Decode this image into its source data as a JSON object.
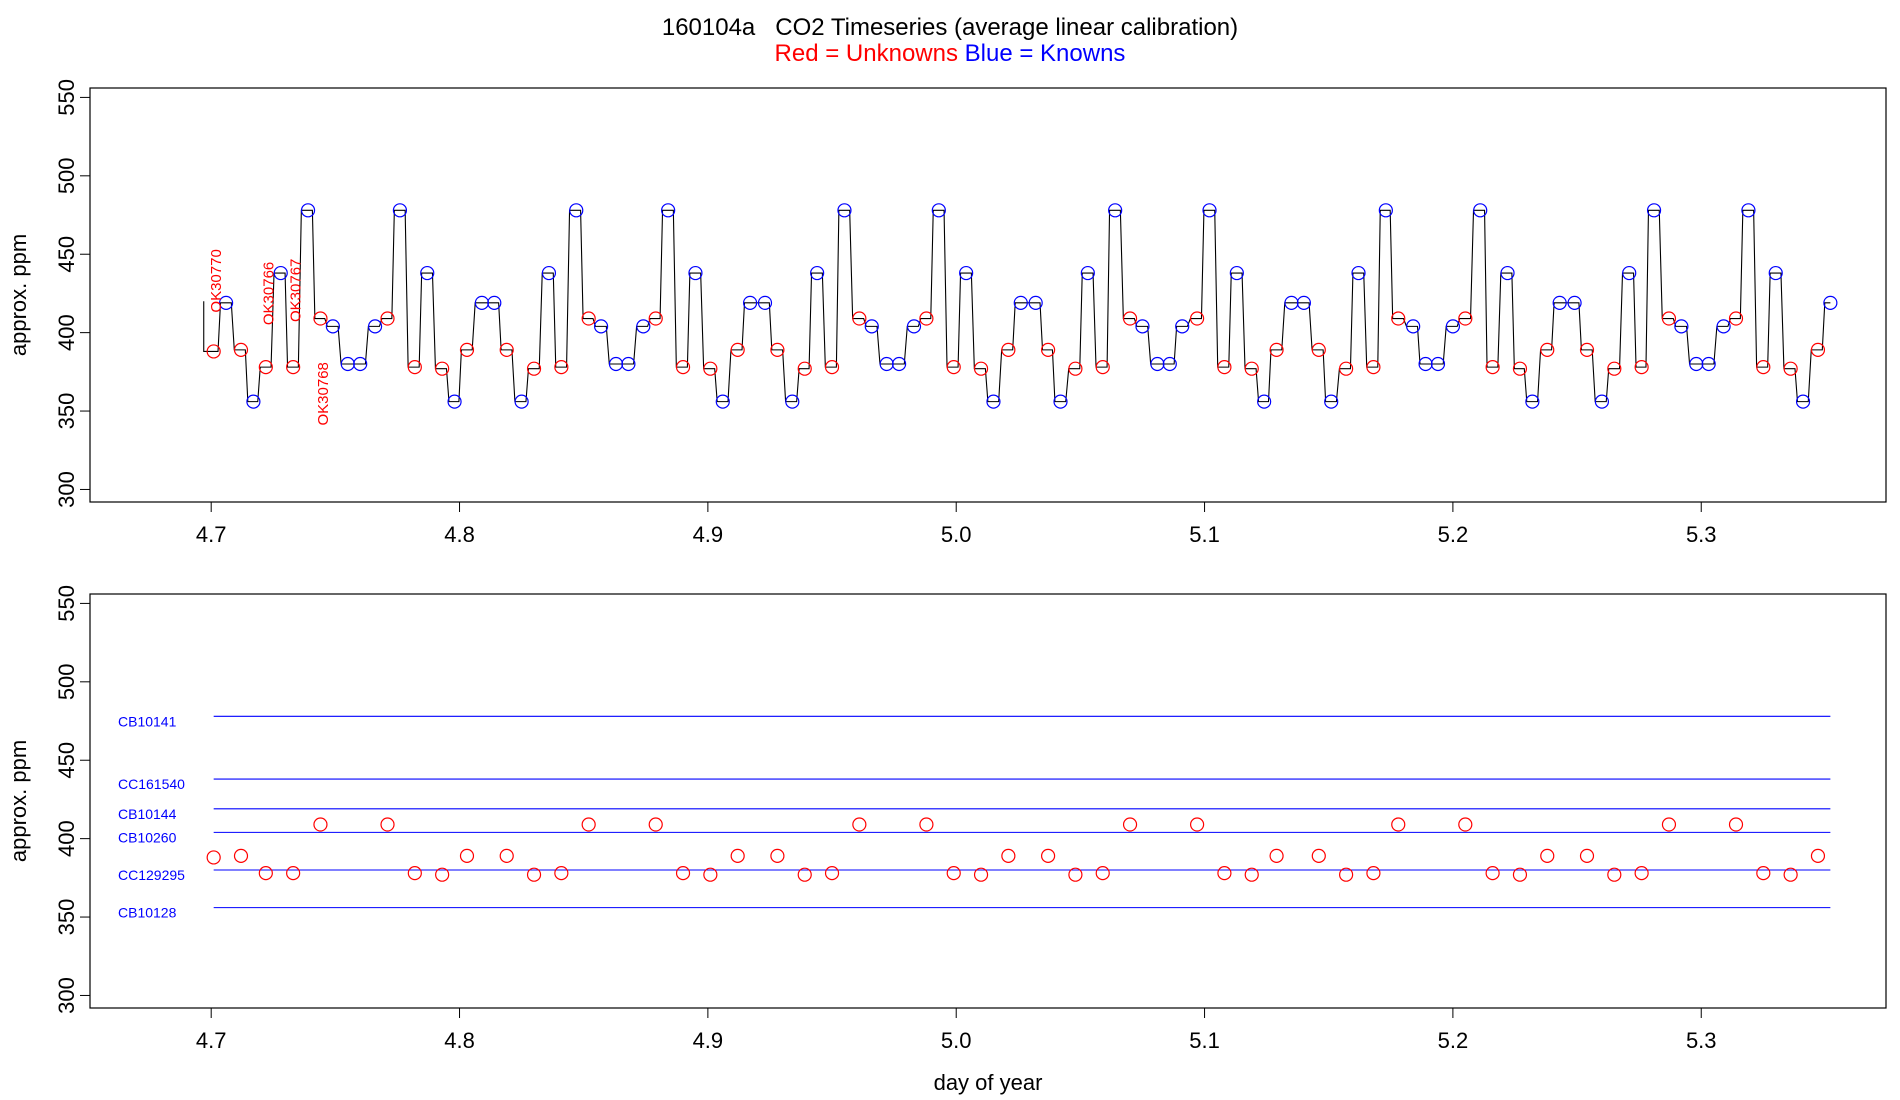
{
  "title": "160104a   CO2 Timeseries (average linear calibration)",
  "subtitle": {
    "red_text": "Red = Unknowns",
    "blue_text": "Blue = Knowns"
  },
  "colors": {
    "unknown": "#ff0000",
    "known": "#0000ff",
    "trace": "#000000",
    "frame": "#000000"
  },
  "chart_data": [
    {
      "type": "line",
      "panel": "top",
      "ylabel": "approx. ppm",
      "xlabel": "",
      "xlim": [
        4.6512,
        5.3744
      ],
      "ylim": [
        292,
        556
      ],
      "x_ticks": [
        "4.7",
        "4.8",
        "4.9",
        "5.0",
        "5.1",
        "5.2",
        "5.3"
      ],
      "y_ticks": [
        "300",
        "350",
        "400",
        "450",
        "500",
        "550"
      ],
      "trace_start_x": 4.697,
      "trace_end_x": 4.705,
      "trace_start_y": 420,
      "series": [
        {
          "role": "unknowns",
          "points": [
            [
              4.701,
              388
            ],
            [
              4.712,
              389
            ],
            [
              4.722,
              378
            ],
            [
              4.733,
              378
            ],
            [
              4.744,
              409
            ],
            [
              4.771,
              409
            ],
            [
              4.782,
              378
            ],
            [
              4.793,
              377
            ],
            [
              4.803,
              389
            ],
            [
              4.819,
              389
            ],
            [
              4.83,
              377
            ],
            [
              4.841,
              378
            ],
            [
              4.852,
              409
            ],
            [
              4.879,
              409
            ],
            [
              4.89,
              378
            ],
            [
              4.901,
              377
            ],
            [
              4.912,
              389
            ],
            [
              4.928,
              389
            ],
            [
              4.939,
              377
            ],
            [
              4.95,
              378
            ],
            [
              4.961,
              409
            ],
            [
              4.988,
              409
            ],
            [
              4.999,
              378
            ],
            [
              5.01,
              377
            ],
            [
              5.021,
              389
            ],
            [
              5.037,
              389
            ],
            [
              5.048,
              377
            ],
            [
              5.059,
              378
            ],
            [
              5.07,
              409
            ],
            [
              5.097,
              409
            ],
            [
              5.108,
              378
            ],
            [
              5.119,
              377
            ],
            [
              5.129,
              389
            ],
            [
              5.146,
              389
            ],
            [
              5.157,
              377
            ],
            [
              5.168,
              378
            ],
            [
              5.178,
              409
            ],
            [
              5.205,
              409
            ],
            [
              5.216,
              378
            ],
            [
              5.227,
              377
            ],
            [
              5.238,
              389
            ],
            [
              5.254,
              389
            ],
            [
              5.265,
              377
            ],
            [
              5.276,
              378
            ],
            [
              5.287,
              409
            ],
            [
              5.314,
              409
            ],
            [
              5.325,
              378
            ],
            [
              5.336,
              377
            ],
            [
              5.347,
              389
            ]
          ]
        },
        {
          "role": "knowns",
          "points": [
            [
              4.706,
              419
            ],
            [
              4.717,
              356
            ],
            [
              4.728,
              438
            ],
            [
              4.739,
              478
            ],
            [
              4.749,
              404
            ],
            [
              4.755,
              380
            ],
            [
              4.76,
              380
            ],
            [
              4.766,
              404
            ],
            [
              4.776,
              478
            ],
            [
              4.787,
              438
            ],
            [
              4.798,
              356
            ],
            [
              4.809,
              419
            ],
            [
              4.814,
              419
            ],
            [
              4.825,
              356
            ],
            [
              4.836,
              438
            ],
            [
              4.847,
              478
            ],
            [
              4.857,
              404
            ],
            [
              4.863,
              380
            ],
            [
              4.868,
              380
            ],
            [
              4.874,
              404
            ],
            [
              4.884,
              478
            ],
            [
              4.895,
              438
            ],
            [
              4.906,
              356
            ],
            [
              4.917,
              419
            ],
            [
              4.923,
              419
            ],
            [
              4.934,
              356
            ],
            [
              4.944,
              438
            ],
            [
              4.955,
              478
            ],
            [
              4.966,
              404
            ],
            [
              4.972,
              380
            ],
            [
              4.977,
              380
            ],
            [
              4.983,
              404
            ],
            [
              4.993,
              478
            ],
            [
              5.004,
              438
            ],
            [
              5.015,
              356
            ],
            [
              5.026,
              419
            ],
            [
              5.032,
              419
            ],
            [
              5.042,
              356
            ],
            [
              5.053,
              438
            ],
            [
              5.064,
              478
            ],
            [
              5.075,
              404
            ],
            [
              5.081,
              380
            ],
            [
              5.086,
              380
            ],
            [
              5.091,
              404
            ],
            [
              5.102,
              478
            ],
            [
              5.113,
              438
            ],
            [
              5.124,
              356
            ],
            [
              5.135,
              419
            ],
            [
              5.14,
              419
            ],
            [
              5.151,
              356
            ],
            [
              5.162,
              438
            ],
            [
              5.173,
              478
            ],
            [
              5.184,
              404
            ],
            [
              5.189,
              380
            ],
            [
              5.194,
              380
            ],
            [
              5.2,
              404
            ],
            [
              5.211,
              478
            ],
            [
              5.222,
              438
            ],
            [
              5.232,
              356
            ],
            [
              5.243,
              419
            ],
            [
              5.249,
              419
            ],
            [
              5.26,
              356
            ],
            [
              5.271,
              438
            ],
            [
              5.281,
              478
            ],
            [
              5.292,
              404
            ],
            [
              5.298,
              380
            ],
            [
              5.303,
              380
            ],
            [
              5.309,
              404
            ],
            [
              5.319,
              478
            ],
            [
              5.33,
              438
            ],
            [
              5.341,
              356
            ],
            [
              5.352,
              419
            ]
          ]
        }
      ],
      "annotations": [
        {
          "text": "OK30770",
          "x": 4.704,
          "y": 433
        },
        {
          "text": "OK30766",
          "x": 4.725,
          "y": 425
        },
        {
          "text": "OK30767",
          "x": 4.736,
          "y": 427
        },
        {
          "text": "OK30768",
          "x": 4.747,
          "y": 361
        }
      ]
    },
    {
      "type": "scatter",
      "panel": "bottom",
      "ylabel": "approx. ppm",
      "xlabel": "day of year",
      "xlim": [
        4.6512,
        5.3744
      ],
      "ylim": [
        292,
        556
      ],
      "x_ticks": [
        "4.7",
        "4.8",
        "4.9",
        "5.0",
        "5.1",
        "5.2",
        "5.3"
      ],
      "y_ticks": [
        "300",
        "350",
        "400",
        "450",
        "500",
        "550"
      ],
      "standards": [
        {
          "name": "CB10141",
          "value": 478
        },
        {
          "name": "CC161540",
          "value": 438
        },
        {
          "name": "CB10144",
          "value": 419
        },
        {
          "name": "CB10260",
          "value": 404
        },
        {
          "name": "CC129295",
          "value": 380
        },
        {
          "name": "CB10128",
          "value": 356
        }
      ],
      "standard_line_x": [
        4.701,
        5.352
      ],
      "series": [
        {
          "role": "unknowns",
          "points": [
            [
              4.701,
              388
            ],
            [
              4.712,
              389
            ],
            [
              4.722,
              378
            ],
            [
              4.733,
              378
            ],
            [
              4.744,
              409
            ],
            [
              4.771,
              409
            ],
            [
              4.782,
              378
            ],
            [
              4.793,
              377
            ],
            [
              4.803,
              389
            ],
            [
              4.819,
              389
            ],
            [
              4.83,
              377
            ],
            [
              4.841,
              378
            ],
            [
              4.852,
              409
            ],
            [
              4.879,
              409
            ],
            [
              4.89,
              378
            ],
            [
              4.901,
              377
            ],
            [
              4.912,
              389
            ],
            [
              4.928,
              389
            ],
            [
              4.939,
              377
            ],
            [
              4.95,
              378
            ],
            [
              4.961,
              409
            ],
            [
              4.988,
              409
            ],
            [
              4.999,
              378
            ],
            [
              5.01,
              377
            ],
            [
              5.021,
              389
            ],
            [
              5.037,
              389
            ],
            [
              5.048,
              377
            ],
            [
              5.059,
              378
            ],
            [
              5.07,
              409
            ],
            [
              5.097,
              409
            ],
            [
              5.108,
              378
            ],
            [
              5.119,
              377
            ],
            [
              5.129,
              389
            ],
            [
              5.146,
              389
            ],
            [
              5.157,
              377
            ],
            [
              5.168,
              378
            ],
            [
              5.178,
              409
            ],
            [
              5.205,
              409
            ],
            [
              5.216,
              378
            ],
            [
              5.227,
              377
            ],
            [
              5.238,
              389
            ],
            [
              5.254,
              389
            ],
            [
              5.265,
              377
            ],
            [
              5.276,
              378
            ],
            [
              5.287,
              409
            ],
            [
              5.314,
              409
            ],
            [
              5.325,
              378
            ],
            [
              5.336,
              377
            ],
            [
              5.347,
              389
            ]
          ]
        }
      ]
    }
  ]
}
